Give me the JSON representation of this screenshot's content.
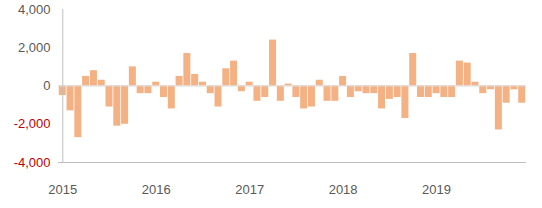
{
  "chart_data": {
    "type": "bar",
    "categories": [
      "2015",
      null,
      null,
      null,
      null,
      null,
      null,
      null,
      null,
      null,
      null,
      null,
      "2016",
      null,
      null,
      null,
      null,
      null,
      null,
      null,
      null,
      null,
      null,
      null,
      "2017",
      null,
      null,
      null,
      null,
      null,
      null,
      null,
      null,
      null,
      null,
      null,
      "2018",
      null,
      null,
      null,
      null,
      null,
      null,
      null,
      null,
      null,
      null,
      null,
      "2019",
      null,
      null,
      null,
      null,
      null,
      null,
      null,
      null,
      null,
      null,
      null
    ],
    "values": [
      -500,
      -1300,
      -2700,
      500,
      800,
      300,
      -1100,
      -2100,
      -2000,
      1000,
      -400,
      -400,
      200,
      -600,
      -1200,
      500,
      1700,
      600,
      200,
      -400,
      -1100,
      900,
      1300,
      -300,
      200,
      -800,
      -600,
      2400,
      -800,
      100,
      -600,
      -1200,
      -1100,
      300,
      -800,
      -800,
      500,
      -600,
      -300,
      -400,
      -400,
      -1200,
      -700,
      -600,
      -1700,
      1700,
      -600,
      -600,
      -400,
      -600,
      -600,
      1300,
      1200,
      200,
      -400,
      -200,
      -2300,
      -900,
      -200,
      -900
    ],
    "color": "#f4b183",
    "ylim": [
      -4000,
      4000
    ],
    "yticks": [
      {
        "value": -4000,
        "label": "-4,000"
      },
      {
        "value": -2000,
        "label": "-2,000"
      },
      0,
      {
        "value": 2000,
        "label": "2,000"
      },
      {
        "value": 4000,
        "label": "4,000"
      }
    ],
    "grid": false
  }
}
